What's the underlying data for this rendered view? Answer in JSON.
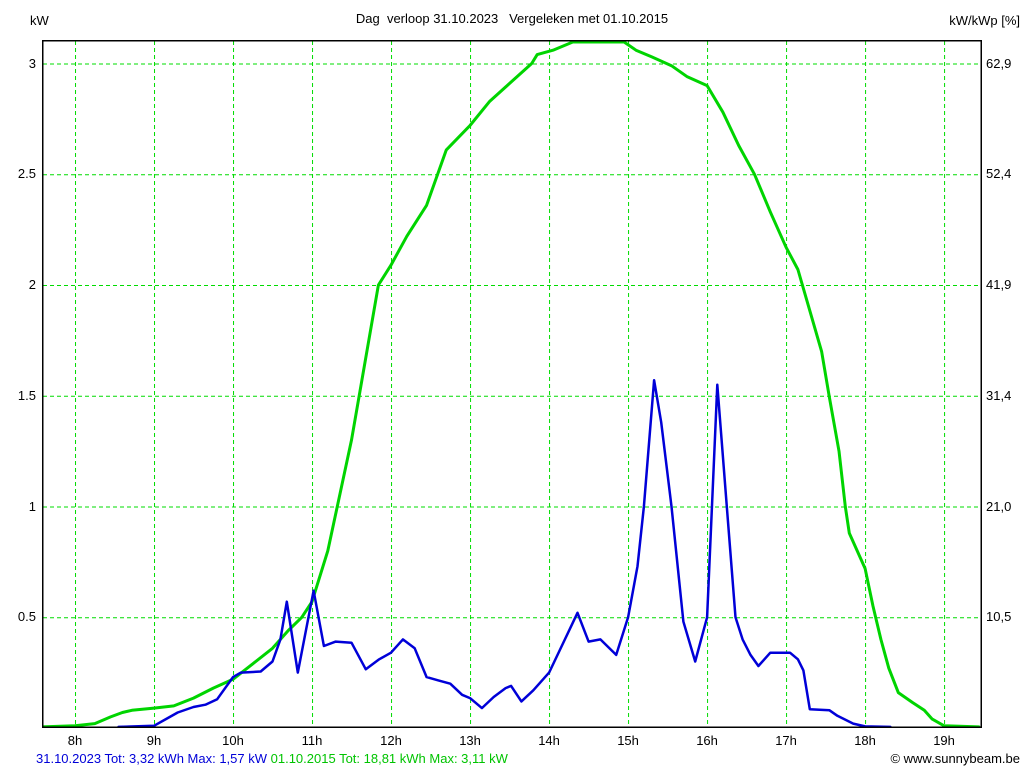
{
  "header": {
    "title": "Dag  verloop 31.10.2023   Vergeleken met 01.10.2015",
    "left_axis_unit": "kW",
    "right_axis_unit": "kW/kWp [%]"
  },
  "footer": {
    "stats_2023": "31.10.2023 Tot: 3,32 kWh Max: 1,57 kW",
    "stats_2015": "01.10.2015 Tot: 18,81 kWh Max: 3,11 kW",
    "copyright": "© www.sunnybeam.be"
  },
  "colors": {
    "series_2023_blue": "#0000d8",
    "series_2015_green": "#00d400",
    "grid_green": "#00dc00",
    "frame_black": "#000000",
    "background": "#ffffff"
  },
  "chart_data": {
    "type": "line",
    "title": "Dag  verloop 31.10.2023   Vergeleken met 01.10.2015",
    "grid": true,
    "x_axis": {
      "tick_hours": [
        8,
        9,
        10,
        11,
        12,
        13,
        14,
        15,
        16,
        17,
        18,
        19
      ],
      "tick_labels": [
        "8h",
        "9h",
        "10h",
        "11h",
        "12h",
        "13h",
        "14h",
        "15h",
        "16h",
        "17h",
        "18h",
        "19h"
      ],
      "range_hours": [
        7.582,
        19.48
      ]
    },
    "left_axis": {
      "unit": "kW",
      "tick_values": [
        0.5,
        1,
        1.5,
        2,
        2.5,
        3
      ],
      "tick_labels": [
        "0.5",
        "1",
        "1.5",
        "2",
        "2.5",
        "3"
      ],
      "range": [
        0,
        3.105
      ]
    },
    "right_axis": {
      "unit": "kW/kWp [%]",
      "tick_values": [
        0.5,
        1,
        1.5,
        2,
        2.5,
        3
      ],
      "tick_labels": [
        "10,5",
        "21,0",
        "31,4",
        "41,9",
        "52,4",
        "62,9"
      ]
    },
    "series": [
      {
        "name": "01.10.2015",
        "color": "#00d400",
        "total": "18,81 kWh",
        "max": "3,11 kW",
        "width": 3,
        "points": [
          [
            7.58,
            0.005
          ],
          [
            8.0,
            0.01
          ],
          [
            8.25,
            0.02
          ],
          [
            8.45,
            0.05
          ],
          [
            8.6,
            0.07
          ],
          [
            8.72,
            0.08
          ],
          [
            9.0,
            0.09
          ],
          [
            9.25,
            0.1
          ],
          [
            9.5,
            0.135
          ],
          [
            9.75,
            0.18
          ],
          [
            10.0,
            0.22
          ],
          [
            10.25,
            0.29
          ],
          [
            10.5,
            0.36
          ],
          [
            10.7,
            0.44
          ],
          [
            10.87,
            0.5
          ],
          [
            11.0,
            0.57
          ],
          [
            11.2,
            0.8
          ],
          [
            11.5,
            1.3
          ],
          [
            11.84,
            2.0
          ],
          [
            12.0,
            2.09
          ],
          [
            12.2,
            2.22
          ],
          [
            12.45,
            2.36
          ],
          [
            12.7,
            2.61
          ],
          [
            13.0,
            2.72
          ],
          [
            13.25,
            2.83
          ],
          [
            13.5,
            2.91
          ],
          [
            13.78,
            3.0
          ],
          [
            13.85,
            3.04
          ],
          [
            14.05,
            3.06
          ],
          [
            14.3,
            3.1
          ],
          [
            14.5,
            3.11
          ],
          [
            14.95,
            3.11
          ],
          [
            15.1,
            3.06
          ],
          [
            15.3,
            3.03
          ],
          [
            15.55,
            2.99
          ],
          [
            15.75,
            2.94
          ],
          [
            16.0,
            2.9
          ],
          [
            16.2,
            2.78
          ],
          [
            16.4,
            2.63
          ],
          [
            16.6,
            2.5
          ],
          [
            16.8,
            2.33
          ],
          [
            17.0,
            2.17
          ],
          [
            17.15,
            2.07
          ],
          [
            17.45,
            1.7
          ],
          [
            17.55,
            1.49
          ],
          [
            17.67,
            1.25
          ],
          [
            17.75,
            1.0
          ],
          [
            17.8,
            0.88
          ],
          [
            18.0,
            0.72
          ],
          [
            18.1,
            0.55
          ],
          [
            18.2,
            0.4
          ],
          [
            18.3,
            0.27
          ],
          [
            18.42,
            0.16
          ],
          [
            18.6,
            0.115
          ],
          [
            18.75,
            0.08
          ],
          [
            18.85,
            0.04
          ],
          [
            19.0,
            0.01
          ],
          [
            19.44,
            0.005
          ]
        ]
      },
      {
        "name": "31.10.2023",
        "color": "#0000d8",
        "total": "3,32 kWh",
        "max": "1,57 kW",
        "width": 2.5,
        "points": [
          [
            8.55,
            0.005
          ],
          [
            9.0,
            0.01
          ],
          [
            9.15,
            0.04
          ],
          [
            9.3,
            0.07
          ],
          [
            9.5,
            0.095
          ],
          [
            9.65,
            0.105
          ],
          [
            9.8,
            0.13
          ],
          [
            10.0,
            0.23
          ],
          [
            10.1,
            0.25
          ],
          [
            10.35,
            0.255
          ],
          [
            10.5,
            0.3
          ],
          [
            10.6,
            0.4
          ],
          [
            10.68,
            0.57
          ],
          [
            10.82,
            0.25
          ],
          [
            11.02,
            0.62
          ],
          [
            11.15,
            0.37
          ],
          [
            11.3,
            0.39
          ],
          [
            11.5,
            0.385
          ],
          [
            11.68,
            0.265
          ],
          [
            11.85,
            0.31
          ],
          [
            12.0,
            0.34
          ],
          [
            12.15,
            0.4
          ],
          [
            12.3,
            0.36
          ],
          [
            12.45,
            0.23
          ],
          [
            12.6,
            0.215
          ],
          [
            12.75,
            0.2
          ],
          [
            12.9,
            0.15
          ],
          [
            13.0,
            0.135
          ],
          [
            13.15,
            0.09
          ],
          [
            13.3,
            0.14
          ],
          [
            13.45,
            0.18
          ],
          [
            13.52,
            0.19
          ],
          [
            13.65,
            0.12
          ],
          [
            13.8,
            0.17
          ],
          [
            14.0,
            0.25
          ],
          [
            14.2,
            0.4
          ],
          [
            14.36,
            0.52
          ],
          [
            14.5,
            0.39
          ],
          [
            14.65,
            0.4
          ],
          [
            14.85,
            0.33
          ],
          [
            15.0,
            0.5
          ],
          [
            15.12,
            0.73
          ],
          [
            15.2,
            1.0
          ],
          [
            15.33,
            1.57
          ],
          [
            15.42,
            1.38
          ],
          [
            15.55,
            1.0
          ],
          [
            15.7,
            0.48
          ],
          [
            15.85,
            0.3
          ],
          [
            16.0,
            0.5
          ],
          [
            16.13,
            1.55
          ],
          [
            16.25,
            1.0
          ],
          [
            16.36,
            0.5
          ],
          [
            16.45,
            0.4
          ],
          [
            16.55,
            0.33
          ],
          [
            16.65,
            0.28
          ],
          [
            16.8,
            0.34
          ],
          [
            17.05,
            0.34
          ],
          [
            17.15,
            0.31
          ],
          [
            17.22,
            0.26
          ],
          [
            17.3,
            0.085
          ],
          [
            17.55,
            0.08
          ],
          [
            17.65,
            0.055
          ],
          [
            17.85,
            0.02
          ],
          [
            18.0,
            0.007
          ],
          [
            18.32,
            0.005
          ]
        ]
      }
    ]
  }
}
